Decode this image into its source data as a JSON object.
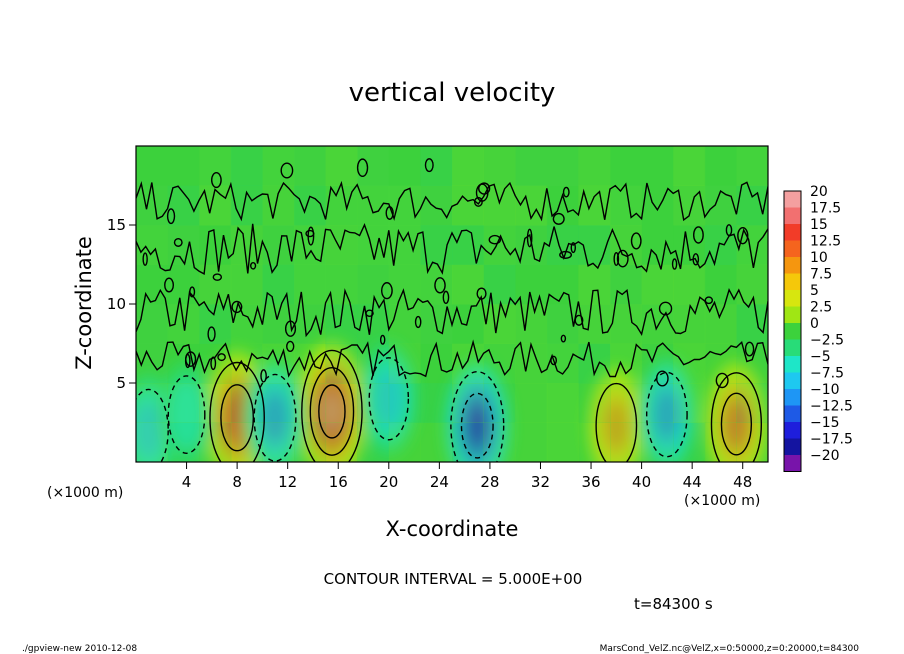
{
  "chart_data": {
    "type": "heatmap",
    "title": "vertical velocity",
    "xlabel": "X-coordinate",
    "ylabel": "Z-coordinate",
    "x_unit": "(×1000 m)",
    "y_unit": "(×1000 m)",
    "xlim": [
      0,
      50
    ],
    "ylim": [
      0,
      20
    ],
    "x_ticks": [
      4,
      8,
      12,
      16,
      20,
      24,
      28,
      32,
      36,
      40,
      44,
      48
    ],
    "y_ticks": [
      5,
      10,
      15
    ],
    "colorbar": {
      "labels": [
        "20",
        "17.5",
        "15",
        "12.5",
        "10",
        "7.5",
        "5",
        "2.5",
        "0",
        "−2.5",
        "−5",
        "−7.5",
        "−10",
        "−12.5",
        "−15",
        "−17.5",
        "−20"
      ],
      "colors": [
        "#f4a0a0",
        "#f27070",
        "#f23c28",
        "#f5641e",
        "#f5960f",
        "#f5c80a",
        "#d7e60f",
        "#a0e614",
        "#3cd23c",
        "#28dc78",
        "#1ee6c8",
        "#1ec8f0",
        "#1e96f5",
        "#1e5ae6",
        "#1e1edc",
        "#1414a0",
        "#7814aa"
      ]
    },
    "features": [
      {
        "x": 8.0,
        "z": 2.8,
        "w": 14
      },
      {
        "x": 15.5,
        "z": 3.2,
        "w": 16
      },
      {
        "x": 38.0,
        "z": 2.3,
        "w": 8
      },
      {
        "x": 47.5,
        "z": 2.4,
        "w": 11
      },
      {
        "x": 1.0,
        "z": 2.0,
        "w": -7
      },
      {
        "x": 4.0,
        "z": 3.0,
        "w": -5
      },
      {
        "x": 11.0,
        "z": 2.8,
        "w": -9
      },
      {
        "x": 20.0,
        "z": 4.0,
        "w": -7
      },
      {
        "x": 27.0,
        "z": 2.3,
        "w": -13
      },
      {
        "x": 42.0,
        "z": 3.0,
        "w": -8
      }
    ]
  },
  "annotations": {
    "contour_interval": "CONTOUR INTERVAL = 5.000E+00",
    "time": "t=84300 s",
    "footer_left": "./gpview-new  2010-12-08",
    "footer_right": "MarsCond_VelZ.nc@VelZ,x=0:50000,z=0:20000,t=84300"
  }
}
